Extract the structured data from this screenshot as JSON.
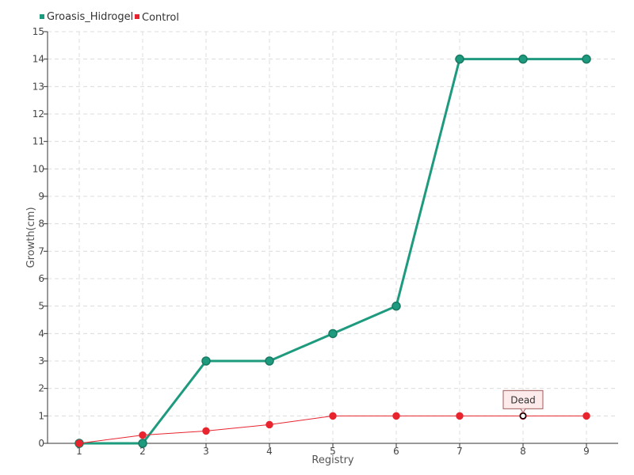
{
  "chart_data": {
    "type": "line",
    "xlabel": "Registry",
    "ylabel": "Growth(cm)",
    "x": [
      1,
      2,
      3,
      4,
      5,
      6,
      7,
      8,
      9
    ],
    "xlim": [
      0.5,
      9.5
    ],
    "ylim": [
      0,
      15
    ],
    "yticks": [
      0,
      1,
      2,
      3,
      4,
      5,
      6,
      7,
      8,
      9,
      10,
      11,
      12,
      13,
      14,
      15
    ],
    "grid": true,
    "legend_position": "top-left",
    "series": [
      {
        "name": "Groasis_Hidrogel",
        "color": "#1e9a7e",
        "values": [
          0,
          0,
          3,
          3,
          4,
          5,
          14,
          14,
          14
        ]
      },
      {
        "name": "Control",
        "color": "#e8242f",
        "values": [
          0,
          0.3,
          0.45,
          0.68,
          1,
          1,
          1,
          1,
          1
        ]
      }
    ],
    "annotations": [
      {
        "series": "Control",
        "x": 8,
        "y": 1,
        "text": "Dead"
      }
    ]
  }
}
